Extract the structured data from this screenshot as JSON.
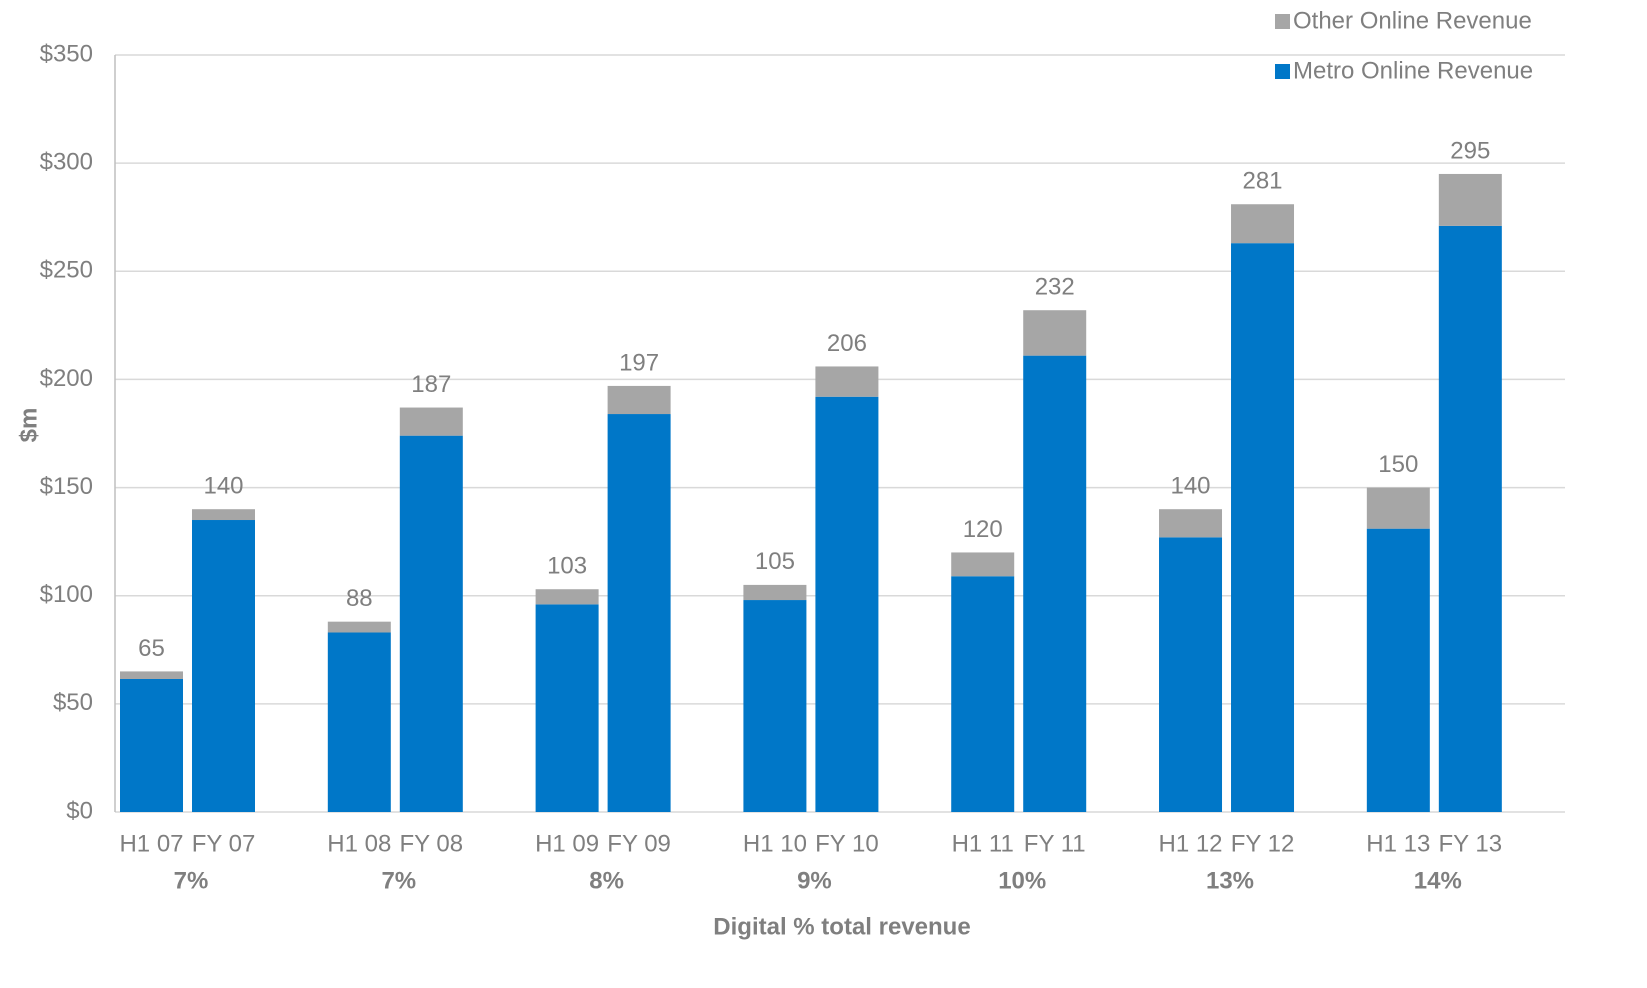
{
  "chart_data": {
    "type": "stacked_bar",
    "y_axis_label": "$m",
    "x_axis_label": "Digital  % total revenue",
    "categories": [
      "H1 07",
      "FY 07",
      "H1 08",
      "FY 08",
      "H1 09",
      "FY 09",
      "H1 10",
      "FY 10",
      "H1 11",
      "FY 11",
      "H1 12",
      "FY 12",
      "H1 13",
      "FY 13"
    ],
    "group_labels": [
      "7%",
      "7%",
      "8%",
      "9%",
      "10%",
      "13%",
      "14%"
    ],
    "series": [
      {
        "name": "Metro Online Revenue",
        "color": "#0077c8",
        "values": [
          61.5,
          135,
          83,
          174,
          96,
          184,
          98,
          192,
          109,
          211,
          127,
          263,
          131,
          271
        ]
      },
      {
        "name": "Other Online Revenue",
        "color": "#a6a6a6",
        "values": [
          3.5,
          5,
          5,
          13,
          7,
          13,
          7,
          14,
          11,
          21,
          13,
          18,
          19,
          24
        ]
      }
    ],
    "totals": [
      65,
      140,
      88,
      187,
      103,
      197,
      105,
      206,
      120,
      232,
      140,
      281,
      150,
      295
    ],
    "ylim": [
      0,
      350
    ],
    "yticks": [
      {
        "value": 0,
        "label": "$0"
      },
      {
        "value": 50,
        "label": "$50"
      },
      {
        "value": 100,
        "label": "$100"
      },
      {
        "value": 150,
        "label": "$150"
      },
      {
        "value": 200,
        "label": "$200"
      },
      {
        "value": 250,
        "label": "$250"
      },
      {
        "value": 300,
        "label": "$300"
      },
      {
        "value": 350,
        "label": "$350"
      }
    ],
    "grid": true,
    "legend": "top-right"
  }
}
